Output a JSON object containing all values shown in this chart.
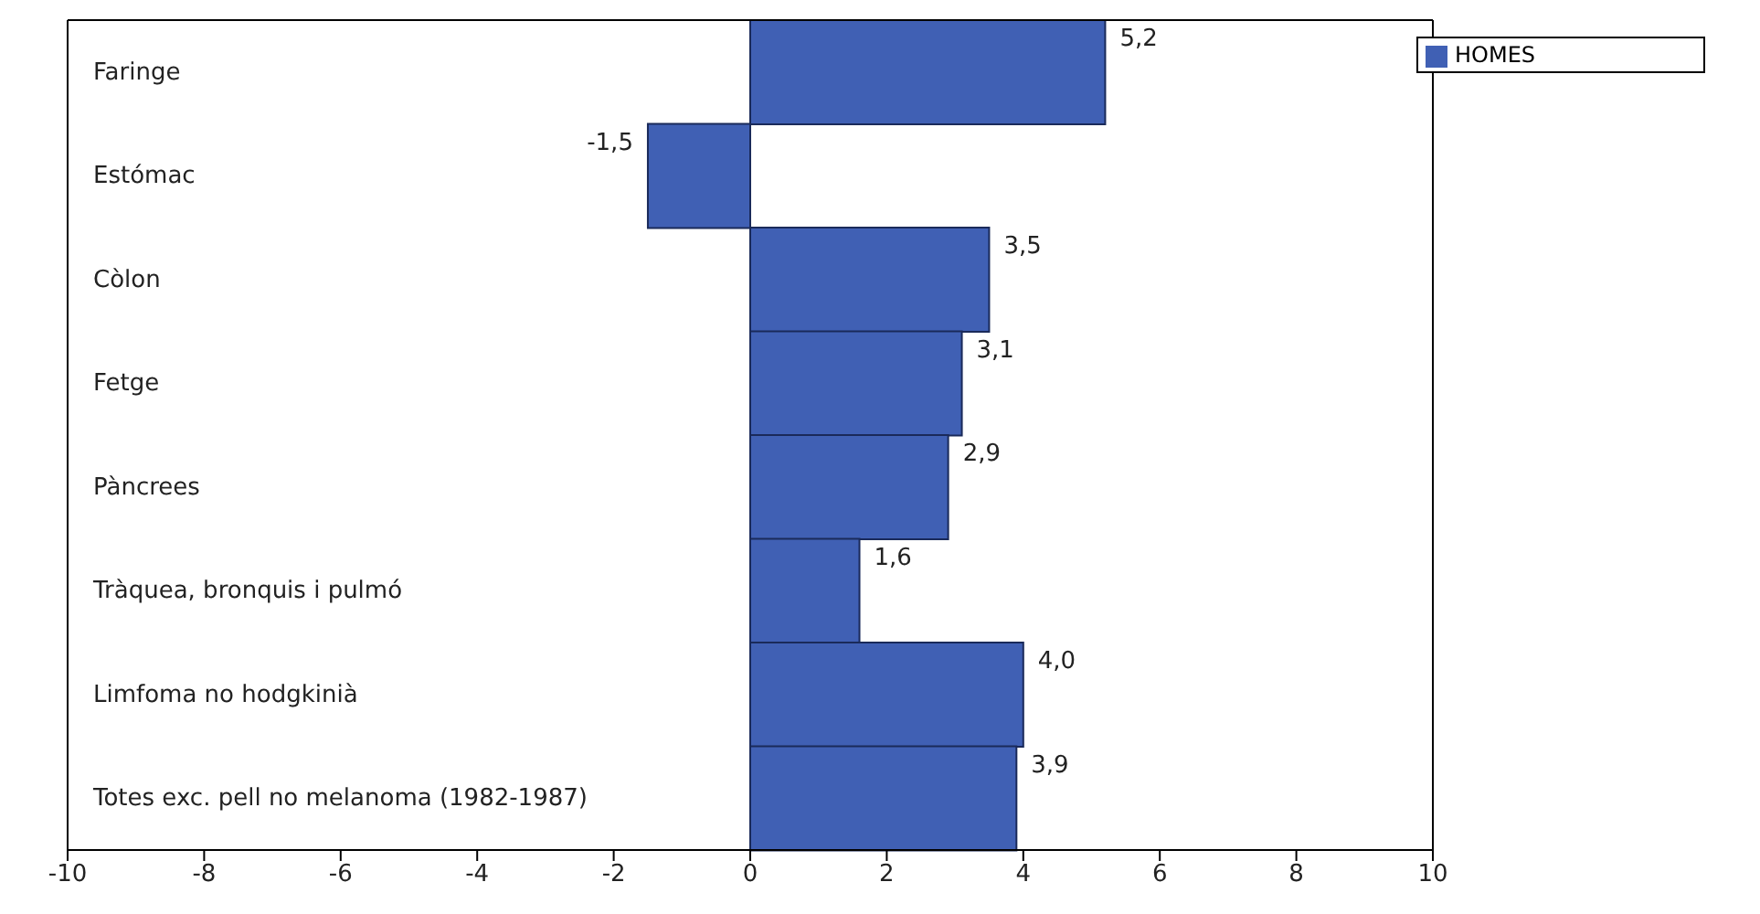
{
  "chart_data": {
    "type": "bar",
    "orientation": "horizontal",
    "categories": [
      "Faringe",
      "Estómac",
      "Còlon",
      "Fetge",
      "Pàncrees",
      "Tràquea, bronquis i pulmó",
      "Limfoma no hodgkinià",
      "Totes exc. pell no melanoma (1982-1987)"
    ],
    "series": [
      {
        "name": "HOMES",
        "color": "#4060b4",
        "values": [
          5.2,
          -1.5,
          3.5,
          3.1,
          2.9,
          1.6,
          4.0,
          3.9
        ],
        "value_labels": [
          "5,2",
          "-1,5",
          "3,5",
          "3,1",
          "2,9",
          "1,6",
          "4,0",
          "3,9"
        ]
      }
    ],
    "xlim": [
      -10,
      10
    ],
    "xticks": [
      -10,
      -8,
      -6,
      -4,
      -2,
      0,
      2,
      4,
      6,
      8,
      10
    ],
    "grid": false,
    "legend": "top right"
  }
}
